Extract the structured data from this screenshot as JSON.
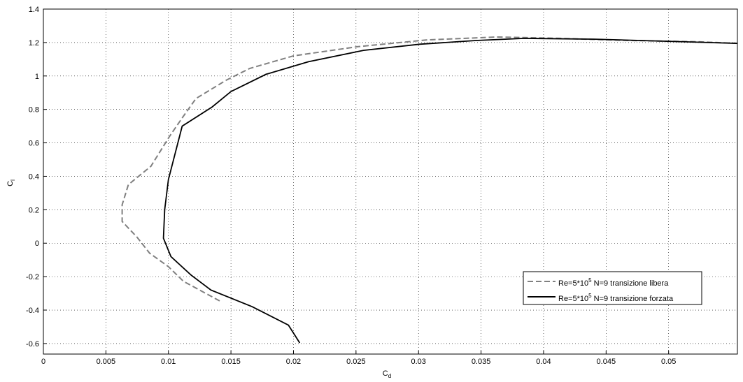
{
  "chart_data": {
    "type": "line",
    "xlabel": [
      "C",
      "d"
    ],
    "ylabel": [
      "C",
      "l"
    ],
    "xlim": [
      0,
      0.0555
    ],
    "ylim": [
      -0.663,
      1.4
    ],
    "xticks": [
      0,
      0.005,
      0.01,
      0.015,
      0.02,
      0.025,
      0.03,
      0.035,
      0.04,
      0.045,
      0.05
    ],
    "yticks": [
      -0.6,
      -0.4,
      -0.2,
      0,
      0.2,
      0.4,
      0.6,
      0.8,
      1,
      1.2,
      1.4
    ],
    "grid": true,
    "legend": "lower right",
    "series": [
      {
        "name": [
          "Re=5*10",
          "5",
          " N=9 transizione libera"
        ],
        "color": "#808080",
        "dash": true,
        "x": [
          0.0141,
          0.0112,
          0.01,
          0.0085,
          0.0075,
          0.0063,
          0.0063,
          0.0068,
          0.0086,
          0.0101,
          0.0112,
          0.0122,
          0.0146,
          0.0165,
          0.02,
          0.0251,
          0.0307,
          0.0363,
          0.0413,
          0.0469,
          0.0525,
          0.0555
        ],
        "y": [
          -0.345,
          -0.228,
          -0.14,
          -0.06,
          0.035,
          0.13,
          0.23,
          0.35,
          0.46,
          0.64,
          0.76,
          0.865,
          0.974,
          1.045,
          1.12,
          1.175,
          1.216,
          1.233,
          1.225,
          1.212,
          1.204,
          1.195
        ]
      },
      {
        "name": [
          "Re=5*10",
          "5",
          " N=9 transizione forzata"
        ],
        "color": "#000000",
        "dash": false,
        "x": [
          0.0205,
          0.0196,
          0.0167,
          0.0134,
          0.0118,
          0.0102,
          0.0096,
          0.0097,
          0.01,
          0.0111,
          0.0135,
          0.015,
          0.0178,
          0.0212,
          0.0256,
          0.0301,
          0.0346,
          0.0385,
          0.0441,
          0.0497,
          0.0555
        ],
        "y": [
          -0.596,
          -0.49,
          -0.38,
          -0.28,
          -0.19,
          -0.08,
          0.03,
          0.2,
          0.38,
          0.7,
          0.815,
          0.907,
          1.01,
          1.085,
          1.153,
          1.19,
          1.212,
          1.225,
          1.22,
          1.208,
          1.195
        ]
      }
    ]
  }
}
